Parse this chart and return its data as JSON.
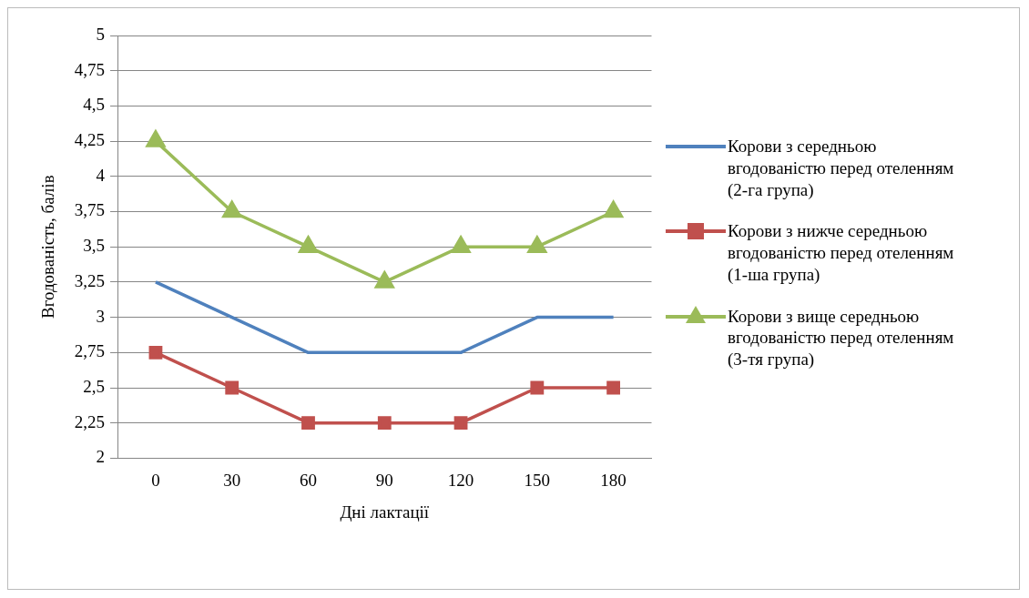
{
  "chart_data": {
    "type": "line",
    "xlabel": "Дні лактації",
    "ylabel": "Вгодованість, балів",
    "categories": [
      "0",
      "30",
      "60",
      "90",
      "120",
      "150",
      "180"
    ],
    "series": [
      {
        "name": "Корови з середньою вгодованістю перед отеленням (2-га група)",
        "color": "#4f81bd",
        "marker": "none",
        "values": [
          3.25,
          3,
          2.75,
          2.75,
          2.75,
          3,
          3
        ]
      },
      {
        "name": "Корови з нижче середньою вгодованістю перед отеленням (1-ша група)",
        "color": "#c0504d",
        "marker": "square",
        "values": [
          2.75,
          2.5,
          2.25,
          2.25,
          2.25,
          2.5,
          2.5
        ]
      },
      {
        "name": "Корови з вище середньою вгодованістю перед отеленням (3-тя група)",
        "color": "#9bbb59",
        "marker": "triangle",
        "values": [
          4.25,
          3.75,
          3.5,
          3.25,
          3.5,
          3.5,
          3.75
        ]
      }
    ],
    "ylim": [
      2,
      5
    ],
    "yticks": [
      2,
      {
        "value": 2.25,
        "label": "2,25"
      },
      {
        "value": 2.5,
        "label": "2,5"
      },
      {
        "value": 2.75,
        "label": "2,75"
      },
      3,
      {
        "value": 3.25,
        "label": "3,25"
      },
      {
        "value": 3.5,
        "label": "3,5"
      },
      {
        "value": 3.75,
        "label": "3,75"
      },
      4,
      {
        "value": 4.25,
        "label": "4,25"
      },
      {
        "value": 4.5,
        "label": "4,5"
      },
      {
        "value": 4.75,
        "label": "4,75"
      },
      5
    ],
    "grid": "y",
    "legend": "right",
    "line_style": "solid"
  }
}
